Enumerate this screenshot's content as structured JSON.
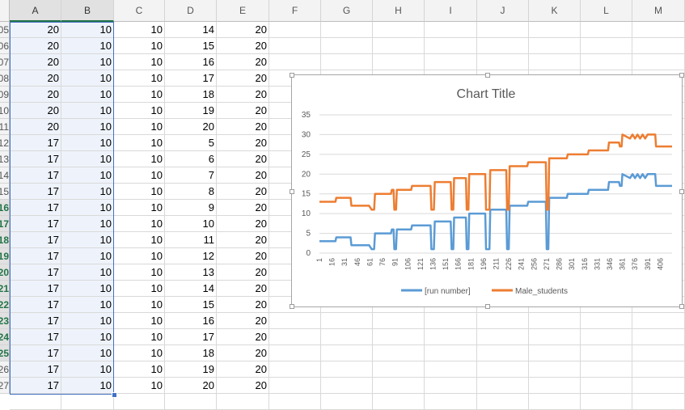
{
  "sheet": {
    "columns": [
      "A",
      "B",
      "C",
      "D",
      "E",
      "F",
      "G",
      "H",
      "I",
      "J",
      "K",
      "L",
      "M"
    ],
    "selected_columns": [
      "A",
      "B"
    ],
    "rows": [
      {
        "label": "05",
        "values": [
          20,
          10,
          10,
          14,
          20
        ]
      },
      {
        "label": "06",
        "values": [
          20,
          10,
          10,
          15,
          20
        ]
      },
      {
        "label": "07",
        "values": [
          20,
          10,
          10,
          16,
          20
        ]
      },
      {
        "label": "08",
        "values": [
          20,
          10,
          10,
          17,
          20
        ]
      },
      {
        "label": "09",
        "values": [
          20,
          10,
          10,
          18,
          20
        ]
      },
      {
        "label": "10",
        "values": [
          20,
          10,
          10,
          19,
          20
        ]
      },
      {
        "label": "11",
        "values": [
          20,
          10,
          10,
          20,
          20
        ]
      },
      {
        "label": "12",
        "values": [
          17,
          10,
          10,
          5,
          20
        ]
      },
      {
        "label": "13",
        "values": [
          17,
          10,
          10,
          6,
          20
        ]
      },
      {
        "label": "14",
        "values": [
          17,
          10,
          10,
          7,
          20
        ]
      },
      {
        "label": "15",
        "values": [
          17,
          10,
          10,
          8,
          20
        ]
      },
      {
        "label": "16",
        "values": [
          17,
          10,
          10,
          9,
          20
        ],
        "highlight": true
      },
      {
        "label": "17",
        "values": [
          17,
          10,
          10,
          10,
          20
        ],
        "highlight": true
      },
      {
        "label": "18",
        "values": [
          17,
          10,
          10,
          11,
          20
        ],
        "highlight": true
      },
      {
        "label": "19",
        "values": [
          17,
          10,
          10,
          12,
          20
        ],
        "highlight": true
      },
      {
        "label": "20",
        "values": [
          17,
          10,
          10,
          13,
          20
        ],
        "highlight": true
      },
      {
        "label": "21",
        "values": [
          17,
          10,
          10,
          14,
          20
        ],
        "highlight": true
      },
      {
        "label": "22",
        "values": [
          17,
          10,
          10,
          15,
          20
        ],
        "highlight": true
      },
      {
        "label": "23",
        "values": [
          17,
          10,
          10,
          16,
          20
        ],
        "highlight": true
      },
      {
        "label": "24",
        "values": [
          17,
          10,
          10,
          17,
          20
        ],
        "highlight": true
      },
      {
        "label": "25",
        "values": [
          17,
          10,
          10,
          18,
          20
        ],
        "highlight": true
      },
      {
        "label": "26",
        "values": [
          17,
          10,
          10,
          19,
          20
        ]
      },
      {
        "label": "27",
        "values": [
          17,
          10,
          10,
          20,
          20
        ]
      }
    ]
  },
  "colors": {
    "series1": "#5b9bd5",
    "series2": "#ed7d31",
    "selection": "#4472c4",
    "header_highlight": "#217346"
  },
  "chart_data": {
    "type": "line",
    "title": "Chart Title",
    "xlabel": "",
    "ylabel": "",
    "ylim": [
      0,
      35
    ],
    "yticks": [
      0,
      5,
      10,
      15,
      20,
      25,
      30,
      35
    ],
    "xlim": [
      1,
      420
    ],
    "xticks": [
      1,
      16,
      31,
      46,
      61,
      76,
      91,
      106,
      121,
      136,
      151,
      166,
      181,
      196,
      211,
      226,
      241,
      256,
      271,
      286,
      301,
      316,
      331,
      346,
      361,
      376,
      391,
      406
    ],
    "grid": true,
    "legend_position": "bottom",
    "series": [
      {
        "name": "[run number]",
        "points": [
          [
            1,
            3
          ],
          [
            20,
            3
          ],
          [
            21,
            4
          ],
          [
            38,
            4
          ],
          [
            39,
            2
          ],
          [
            60,
            2
          ],
          [
            63,
            1
          ],
          [
            66,
            1
          ],
          [
            67,
            5
          ],
          [
            86,
            5
          ],
          [
            87,
            6
          ],
          [
            89,
            6
          ],
          [
            90,
            1
          ],
          [
            92,
            1
          ],
          [
            93,
            6
          ],
          [
            110,
            6
          ],
          [
            111,
            7
          ],
          [
            133,
            7
          ],
          [
            134,
            1
          ],
          [
            137,
            1
          ],
          [
            138,
            8
          ],
          [
            157,
            8
          ],
          [
            158,
            1
          ],
          [
            160,
            1
          ],
          [
            161,
            9
          ],
          [
            175,
            9
          ],
          [
            176,
            1
          ],
          [
            178,
            1
          ],
          [
            179,
            10
          ],
          [
            198,
            10
          ],
          [
            199,
            1
          ],
          [
            203,
            1
          ],
          [
            204,
            11
          ],
          [
            223,
            11
          ],
          [
            224,
            1
          ],
          [
            226,
            1
          ],
          [
            227,
            12
          ],
          [
            248,
            12
          ],
          [
            249,
            13
          ],
          [
            270,
            13
          ],
          [
            271,
            1
          ],
          [
            273,
            1
          ],
          [
            274,
            14
          ],
          [
            295,
            14
          ],
          [
            296,
            15
          ],
          [
            320,
            15
          ],
          [
            321,
            16
          ],
          [
            344,
            16
          ],
          [
            345,
            18
          ],
          [
            357,
            18
          ],
          [
            358,
            17
          ],
          [
            360,
            17
          ],
          [
            361,
            20
          ],
          [
            370,
            19
          ],
          [
            373,
            20
          ],
          [
            376,
            19
          ],
          [
            379,
            20
          ],
          [
            382,
            19
          ],
          [
            385,
            20
          ],
          [
            388,
            19
          ],
          [
            391,
            20
          ],
          [
            400,
            20
          ],
          [
            401,
            17
          ],
          [
            420,
            17
          ]
        ]
      },
      {
        "name": "Male_students",
        "points": [
          [
            1,
            13
          ],
          [
            20,
            13
          ],
          [
            21,
            14
          ],
          [
            38,
            14
          ],
          [
            39,
            12
          ],
          [
            60,
            12
          ],
          [
            63,
            11
          ],
          [
            66,
            11
          ],
          [
            67,
            15
          ],
          [
            86,
            15
          ],
          [
            87,
            16
          ],
          [
            89,
            16
          ],
          [
            90,
            11
          ],
          [
            92,
            11
          ],
          [
            93,
            16
          ],
          [
            110,
            16
          ],
          [
            111,
            17
          ],
          [
            133,
            17
          ],
          [
            134,
            11
          ],
          [
            137,
            11
          ],
          [
            138,
            18
          ],
          [
            157,
            18
          ],
          [
            158,
            11
          ],
          [
            160,
            11
          ],
          [
            161,
            19
          ],
          [
            175,
            19
          ],
          [
            176,
            11
          ],
          [
            178,
            11
          ],
          [
            179,
            20
          ],
          [
            198,
            20
          ],
          [
            199,
            11
          ],
          [
            203,
            11
          ],
          [
            204,
            21
          ],
          [
            223,
            21
          ],
          [
            224,
            11
          ],
          [
            226,
            11
          ],
          [
            227,
            22
          ],
          [
            248,
            22
          ],
          [
            249,
            23
          ],
          [
            270,
            23
          ],
          [
            271,
            11
          ],
          [
            273,
            11
          ],
          [
            274,
            24
          ],
          [
            295,
            24
          ],
          [
            296,
            25
          ],
          [
            320,
            25
          ],
          [
            321,
            26
          ],
          [
            344,
            26
          ],
          [
            345,
            28
          ],
          [
            357,
            28
          ],
          [
            358,
            27
          ],
          [
            360,
            27
          ],
          [
            361,
            30
          ],
          [
            370,
            29
          ],
          [
            373,
            30
          ],
          [
            376,
            29
          ],
          [
            379,
            30
          ],
          [
            382,
            29
          ],
          [
            385,
            30
          ],
          [
            388,
            29
          ],
          [
            391,
            30
          ],
          [
            400,
            30
          ],
          [
            401,
            27
          ],
          [
            420,
            27
          ]
        ]
      }
    ]
  }
}
